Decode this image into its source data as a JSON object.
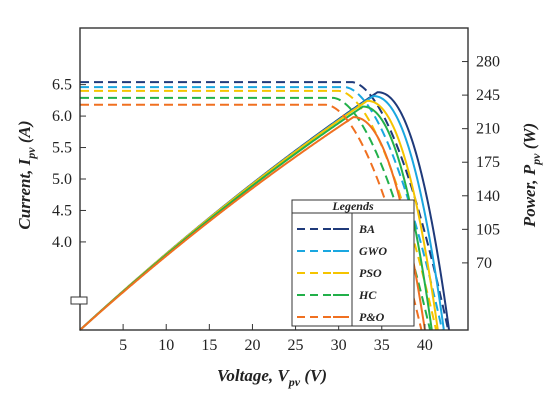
{
  "chart_data": {
    "type": "line",
    "xlabel": {
      "main": "Voltage, ",
      "var": "V",
      "sub": "pv",
      "unit": " (V)"
    },
    "ylabel_left": {
      "main": "Current, ",
      "var": "I",
      "sub": "pv",
      "unit": " (A)"
    },
    "ylabel_right": {
      "main": "Power, ",
      "var": "P",
      "sub": "pv",
      "unit": " (W)"
    },
    "xlim": [
      0,
      45
    ],
    "ylim_left": [
      2.6,
      7.4
    ],
    "ylim_right": [
      0,
      315
    ],
    "x_ticks": [
      "5",
      "10",
      "15",
      "20",
      "25",
      "30",
      "35",
      "40"
    ],
    "x_tick_values": [
      5,
      10,
      15,
      20,
      25,
      30,
      35,
      40
    ],
    "y_left_ticks": [
      "4.0",
      "4.5",
      "5.0",
      "5.5",
      "6.0",
      "6.5"
    ],
    "y_left_tick_values": [
      4.0,
      4.5,
      5.0,
      5.5,
      6.0,
      6.5
    ],
    "y_right_ticks": [
      "70",
      "105",
      "140",
      "175",
      "210",
      "245",
      "280"
    ],
    "y_right_tick_values": [
      70,
      105,
      140,
      175,
      210,
      245,
      280
    ],
    "legend": {
      "title": "Legends",
      "placement": "bottom-right"
    },
    "series": [
      {
        "name": "BA",
        "color": "#1f3a7a",
        "Isc": 6.54,
        "Vknee": 31.5,
        "Voc": 42.7,
        "Pmax": 248,
        "Vmp": 34.5,
        "Vend_power": 42.8
      },
      {
        "name": "GWO",
        "color": "#1aa7e0",
        "Isc": 6.46,
        "Vknee": 30.7,
        "Voc": 42.0,
        "Pmax": 244,
        "Vmp": 34.0,
        "Vend_power": 42.2
      },
      {
        "name": "PSO",
        "color": "#f5c400",
        "Isc": 6.4,
        "Vknee": 30.0,
        "Voc": 41.3,
        "Pmax": 239,
        "Vmp": 33.3,
        "Vend_power": 41.5
      },
      {
        "name": "HC",
        "color": "#22b04a",
        "Isc": 6.29,
        "Vknee": 29.3,
        "Voc": 40.6,
        "Pmax": 233,
        "Vmp": 32.8,
        "Vend_power": 40.8
      },
      {
        "name": "P&O",
        "color": "#f07020",
        "Isc": 6.18,
        "Vknee": 28.5,
        "Voc": 39.6,
        "Pmax": 222,
        "Vmp": 31.7,
        "Vend_power": 40.0
      }
    ]
  }
}
